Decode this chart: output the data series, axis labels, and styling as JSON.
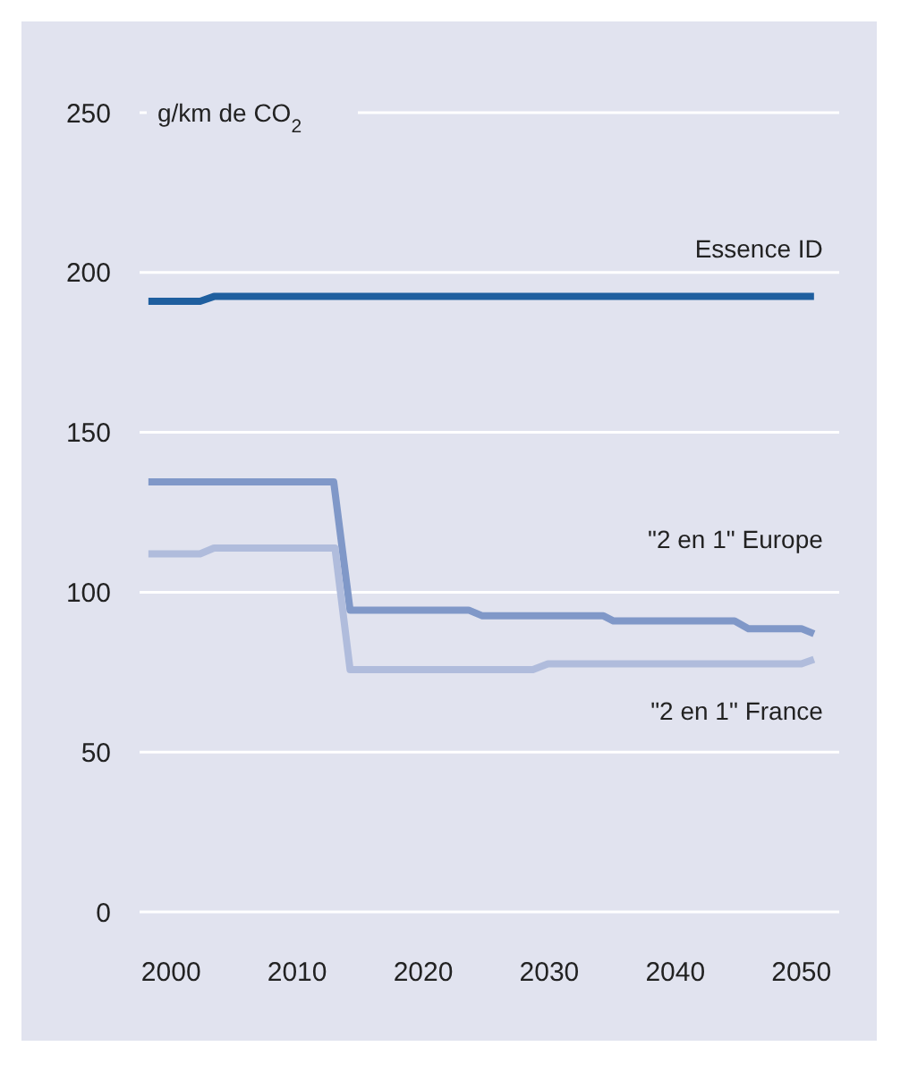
{
  "chart_data": {
    "type": "line",
    "ylabel": "g/km de CO$_{2}$",
    "xlim": [
      1997.5,
      2053
    ],
    "xticks": [
      2000,
      2010,
      2020,
      2030,
      2040,
      2050
    ],
    "ylim": [
      0,
      250
    ],
    "yticks": [
      0,
      50,
      100,
      150,
      200,
      250
    ],
    "grid": "y",
    "legend": false,
    "marker": "none",
    "line_style": "solid",
    "series": [
      {
        "name": "Essence ID",
        "color": "#1f5f9f",
        "x": [
          1998.2,
          2002.3,
          2003.4,
          2051
        ],
        "values": [
          191,
          191,
          192.5,
          192.5
        ]
      },
      {
        "name": "\"2 en 1\" Europe",
        "color": "#8098c8",
        "x": [
          1998.2,
          2012.9,
          2014.2,
          2023.6,
          2024.7,
          2034.3,
          2035.1,
          2044.7,
          2045.8,
          2050,
          2051
        ],
        "values": [
          134.5,
          134.5,
          94.4,
          94.4,
          92.6,
          92.6,
          91,
          91,
          88.6,
          88.6,
          87
        ]
      },
      {
        "name": "\"2 en 1\" France",
        "color": "#b0bcdc",
        "x": [
          1998.2,
          2002.3,
          2003.4,
          2013,
          2014.2,
          2028.7,
          2029.9,
          2050,
          2051
        ],
        "values": [
          112,
          112,
          113.8,
          113.8,
          75.8,
          75.8,
          77.6,
          77.6,
          79
        ]
      }
    ]
  }
}
